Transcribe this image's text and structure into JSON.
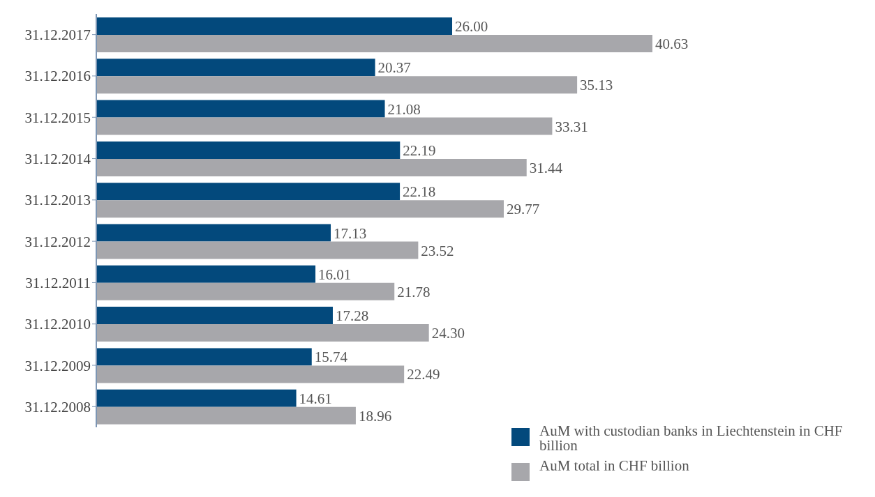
{
  "chart_data": {
    "type": "bar",
    "orientation": "horizontal",
    "categories": [
      "31.12.2017",
      "31.12.2016",
      "31.12.2015",
      "31.12.2014",
      "31.12.2013",
      "31.12.2012",
      "31.12.2011",
      "31.12.2010",
      "31.12.2009",
      "31.12.2008"
    ],
    "series": [
      {
        "name": "AuM with custodian banks in Liechtenstein in CHF billion",
        "color": "#03497c",
        "values": [
          26.0,
          20.37,
          21.08,
          22.19,
          22.18,
          17.13,
          16.01,
          17.28,
          15.74,
          14.61
        ],
        "value_labels": [
          "26.00",
          "20.37",
          "21.08",
          "22.19",
          "22.18",
          "17.13",
          "16.01",
          "17.28",
          "15.74",
          "14.61"
        ]
      },
      {
        "name": "AuM total in CHF billion",
        "color": "#a7a7ab",
        "values": [
          40.63,
          35.13,
          33.31,
          31.44,
          29.77,
          23.52,
          21.78,
          24.3,
          22.49,
          18.96
        ],
        "value_labels": [
          "40.63",
          "35.13",
          "33.31",
          "31.44",
          "29.77",
          "23.52",
          "21.78",
          "24.30",
          "22.49",
          "18.96"
        ]
      }
    ],
    "legend": "bottom right",
    "grid": false
  }
}
